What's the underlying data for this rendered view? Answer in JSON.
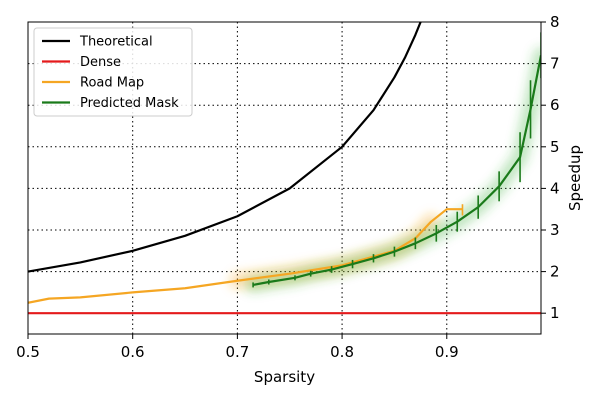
{
  "chart_data": {
    "type": "line",
    "title": "",
    "xlabel": "Sparsity",
    "ylabel": "Speedup",
    "xlim": [
      0.5,
      0.99
    ],
    "ylim": [
      0.5,
      8
    ],
    "xticks": [
      "0.5",
      "0.6",
      "0.7",
      "0.8",
      "0.9"
    ],
    "yticks": [
      "1",
      "2",
      "3",
      "4",
      "5",
      "6",
      "7",
      "8"
    ],
    "y_axis_side": "right",
    "grid": true,
    "legend_position": "top-left",
    "series": [
      {
        "name": "Theoretical",
        "color": "#000000",
        "x": [
          0.5,
          0.55,
          0.6,
          0.65,
          0.7,
          0.75,
          0.8,
          0.83,
          0.85,
          0.86,
          0.87,
          0.875
        ],
        "y": [
          2.0,
          2.22,
          2.5,
          2.86,
          3.33,
          4.0,
          5.0,
          5.88,
          6.67,
          7.14,
          7.69,
          8.0
        ]
      },
      {
        "name": "Dense",
        "color": "#e41a1c",
        "x": [
          0.5,
          0.99
        ],
        "y": [
          1.0,
          1.0
        ]
      },
      {
        "name": "Road Map",
        "color": "#f5a623",
        "x": [
          0.5,
          0.52,
          0.55,
          0.6,
          0.65,
          0.7,
          0.75,
          0.8,
          0.85,
          0.87,
          0.885,
          0.9,
          0.915
        ],
        "y": [
          1.25,
          1.35,
          1.38,
          1.5,
          1.6,
          1.78,
          1.95,
          2.15,
          2.5,
          2.8,
          3.2,
          3.5,
          3.5
        ]
      },
      {
        "name": "Predicted Mask",
        "color": "#1a7a1a",
        "x": [
          0.715,
          0.73,
          0.755,
          0.77,
          0.79,
          0.81,
          0.83,
          0.85,
          0.87,
          0.89,
          0.91,
          0.93,
          0.95,
          0.97,
          0.98,
          0.99
        ],
        "y": [
          1.68,
          1.75,
          1.85,
          1.95,
          2.05,
          2.18,
          2.32,
          2.48,
          2.68,
          2.92,
          3.2,
          3.55,
          4.05,
          4.75,
          5.9,
          7.2
        ],
        "error": [
          0.06,
          0.06,
          0.06,
          0.07,
          0.08,
          0.1,
          0.1,
          0.12,
          0.14,
          0.2,
          0.24,
          0.28,
          0.36,
          0.6,
          0.7,
          0.55
        ]
      }
    ]
  }
}
